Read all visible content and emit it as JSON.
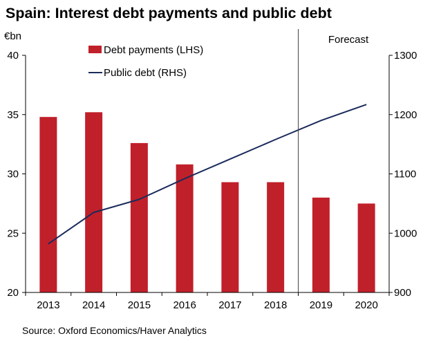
{
  "chart_data": {
    "type": "bar",
    "title": "Spain: Interest debt payments and public debt",
    "left_axis_unit": "€bn",
    "forecast_label": "Forecast",
    "forecast_start": "2019",
    "source": "Source: Oxford Economics/Haver Analytics",
    "categories": [
      "2013",
      "2014",
      "2015",
      "2016",
      "2017",
      "2018",
      "2019",
      "2020"
    ],
    "ylim_left": [
      20,
      40
    ],
    "yticks_left": [
      20,
      25,
      30,
      35,
      40
    ],
    "ylim_right": [
      900,
      1300
    ],
    "yticks_right": [
      900,
      1000,
      1100,
      1200,
      1300
    ],
    "legend_placement": "top-left",
    "grid": false,
    "series": [
      {
        "name": "Debt payments (LHS)",
        "type": "bar",
        "axis": "left",
        "color": "#c0202a",
        "values": [
          34.8,
          35.2,
          32.6,
          30.8,
          29.3,
          29.3,
          28.0,
          27.5
        ]
      },
      {
        "name": "Public debt (RHS)",
        "type": "line",
        "axis": "right",
        "color": "#1a2a5c",
        "values": [
          982,
          1035,
          1057,
          1092,
          1125,
          1158,
          1190,
          1217
        ]
      }
    ]
  }
}
